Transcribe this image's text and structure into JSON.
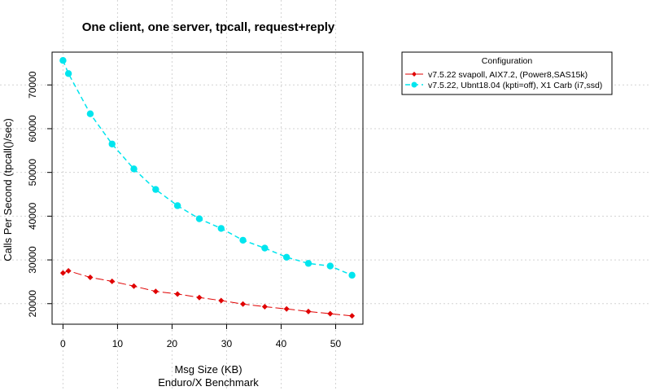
{
  "chart_data": {
    "type": "line",
    "title": "One client, one server, tpcall, request+reply",
    "xlabel": "Msg Size (KB)",
    "xlabel2": "Enduro/X Benchmark",
    "ylabel": "Calls Per Second (tpcall()/sec)",
    "xlim": [
      -2,
      55
    ],
    "ylim": [
      15300,
      77500
    ],
    "x_ticks": [
      0,
      10,
      20,
      30,
      40,
      50
    ],
    "y_ticks": [
      20000,
      30000,
      40000,
      50000,
      60000,
      70000
    ],
    "grid": true,
    "legend_position": "top-right",
    "legend_title": "Configuration",
    "series": [
      {
        "name": "v7.5.22 svapoll, AIX7.2, (Power8,SAS15k)",
        "color": "#e00000",
        "marker": "diamond",
        "line_style": "long-dash",
        "x": [
          0,
          1,
          5,
          9,
          13,
          17,
          21,
          25,
          29,
          33,
          37,
          41,
          45,
          49,
          53
        ],
        "values": [
          27000,
          27500,
          26000,
          25100,
          24000,
          22800,
          22200,
          21400,
          20700,
          19900,
          19300,
          18800,
          18200,
          17700,
          17200
        ]
      },
      {
        "name": "v7.5.22, Ubnt18.04 (kpti=off), X1 Carb (i7,ssd)",
        "color": "#00e5ee",
        "marker": "circle",
        "line_style": "dash",
        "x": [
          0,
          1,
          5,
          9,
          13,
          17,
          21,
          25,
          29,
          33,
          37,
          41,
          45,
          49,
          53
        ],
        "values": [
          75600,
          72600,
          63400,
          56500,
          50800,
          46100,
          42400,
          39400,
          37200,
          34500,
          32700,
          30600,
          29200,
          28600,
          26500
        ]
      }
    ]
  }
}
